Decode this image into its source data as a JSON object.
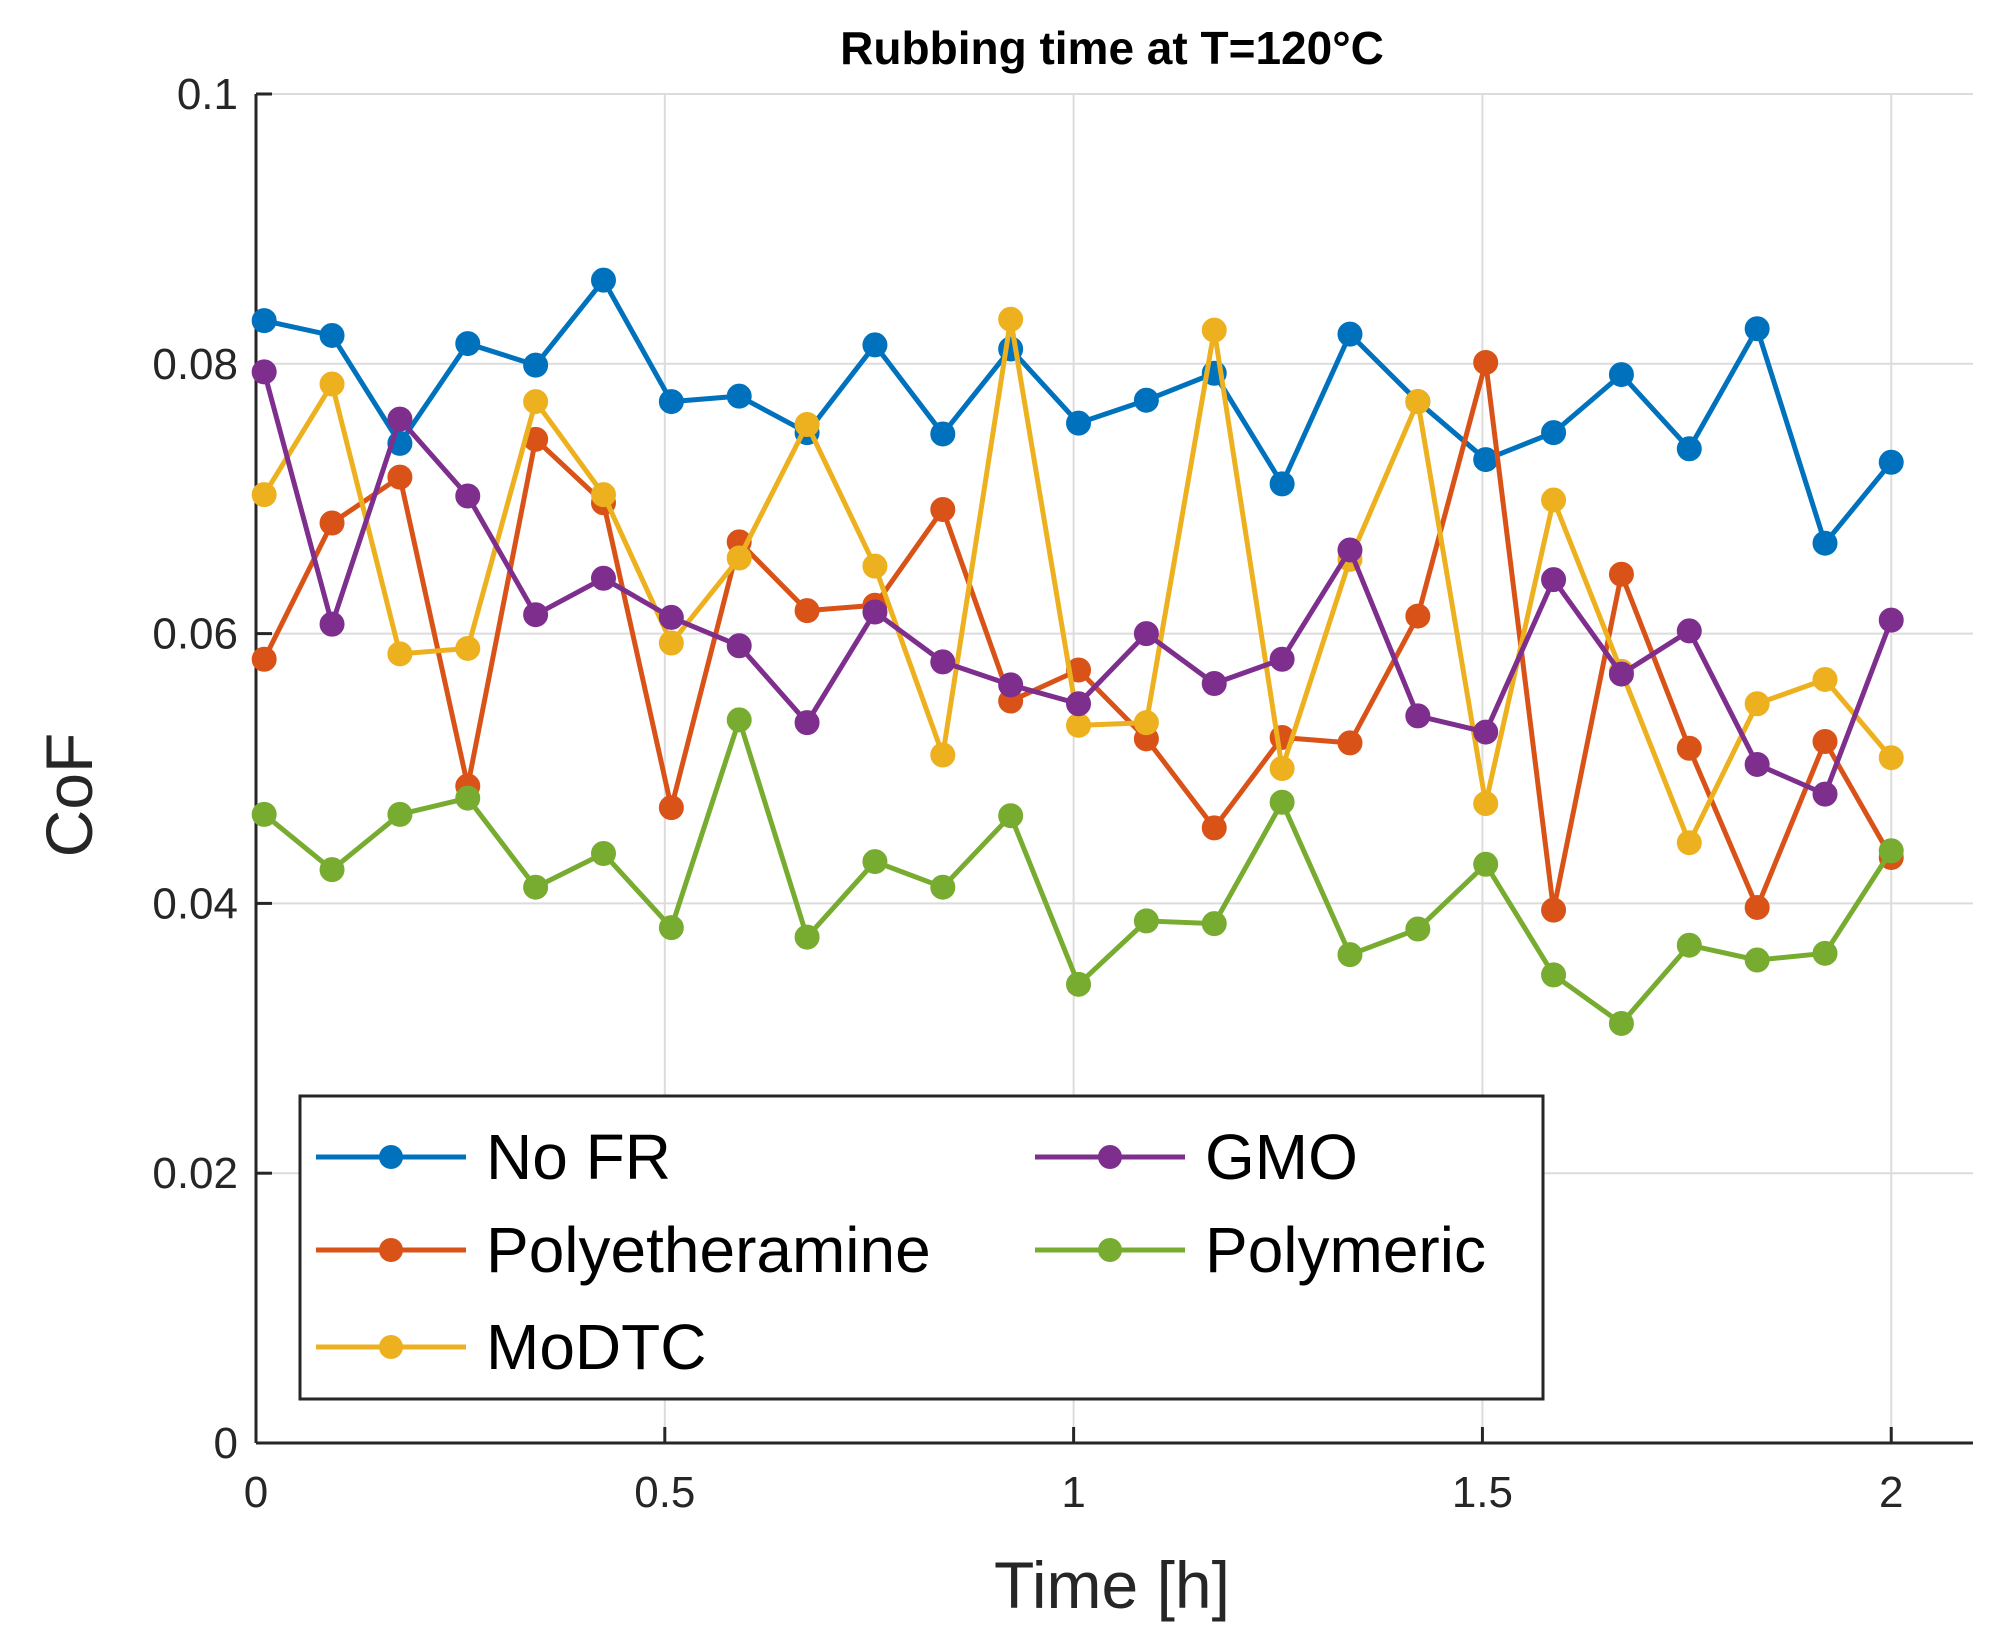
{
  "chart_data": {
    "type": "line",
    "title": "Rubbing time at T=120°C",
    "xlabel": "Time [h]",
    "ylabel": "CoF",
    "xlim": [
      0,
      2.1
    ],
    "ylim": [
      0,
      0.1
    ],
    "xticks": [
      0,
      0.5,
      1,
      1.5,
      2
    ],
    "xtick_labels": [
      "0",
      "0.5",
      "1",
      "1.5",
      "2"
    ],
    "yticks": [
      0,
      0.02,
      0.04,
      0.06,
      0.08,
      0.1
    ],
    "ytick_labels": [
      "0",
      "0.02",
      "0.04",
      "0.06",
      "0.08",
      "0.1"
    ],
    "grid": true,
    "legend_position": "bottom-left",
    "x": [
      0.01,
      0.093,
      0.176,
      0.259,
      0.342,
      0.425,
      0.508,
      0.591,
      0.674,
      0.757,
      0.84,
      0.923,
      1.006,
      1.089,
      1.172,
      1.255,
      1.338,
      1.421,
      1.504,
      1.587,
      1.67,
      1.753,
      1.836,
      1.919,
      2.0
    ],
    "series": [
      {
        "name": "No FR",
        "color": "#0072BD",
        "values": [
          0.0832,
          0.0821,
          0.0741,
          0.0815,
          0.0799,
          0.0862,
          0.0772,
          0.0776,
          0.0749,
          0.0814,
          0.0748,
          0.0811,
          0.0756,
          0.0773,
          0.0793,
          0.0711,
          0.0822,
          0.0772,
          0.0729,
          0.0749,
          0.0792,
          0.0737,
          0.0826,
          0.0667,
          0.0727
        ]
      },
      {
        "name": "Polyetheramine",
        "color": "#D95319",
        "values": [
          0.0581,
          0.0682,
          0.0716,
          0.0487,
          0.0744,
          0.0697,
          0.0471,
          0.0668,
          0.0617,
          0.0621,
          0.0692,
          0.055,
          0.0573,
          0.0522,
          0.0456,
          0.0523,
          0.0519,
          0.0613,
          0.0801,
          0.0395,
          0.0644,
          0.0515,
          0.0397,
          0.052,
          0.0434
        ]
      },
      {
        "name": "MoDTC",
        "color": "#EDB120",
        "values": [
          0.0703,
          0.0785,
          0.0585,
          0.0589,
          0.0772,
          0.0703,
          0.0593,
          0.0656,
          0.0755,
          0.065,
          0.051,
          0.0833,
          0.0532,
          0.0534,
          0.0825,
          0.05,
          0.0655,
          0.0772,
          0.0474,
          0.0699,
          0.0572,
          0.0445,
          0.0548,
          0.0566,
          0.0508
        ]
      },
      {
        "name": "GMO",
        "color": "#7E2F8E",
        "values": [
          0.0794,
          0.0607,
          0.0759,
          0.0702,
          0.0614,
          0.0641,
          0.0612,
          0.0591,
          0.0534,
          0.0616,
          0.0579,
          0.0562,
          0.0548,
          0.06,
          0.0563,
          0.0581,
          0.0662,
          0.0539,
          0.0527,
          0.064,
          0.057,
          0.0602,
          0.0503,
          0.0481,
          0.061
        ]
      },
      {
        "name": "Polymeric",
        "color": "#77AC30",
        "values": [
          0.0466,
          0.0425,
          0.0466,
          0.0478,
          0.0412,
          0.0437,
          0.0382,
          0.0536,
          0.0375,
          0.0431,
          0.0412,
          0.0465,
          0.034,
          0.0387,
          0.0385,
          0.0475,
          0.0362,
          0.0381,
          0.0429,
          0.0347,
          0.0311,
          0.0369,
          0.0358,
          0.0363,
          0.0439
        ]
      }
    ],
    "legend_layout": [
      [
        "No FR",
        "GMO"
      ],
      [
        "Polyetheramine",
        "Polymeric"
      ],
      [
        "MoDTC"
      ]
    ]
  }
}
